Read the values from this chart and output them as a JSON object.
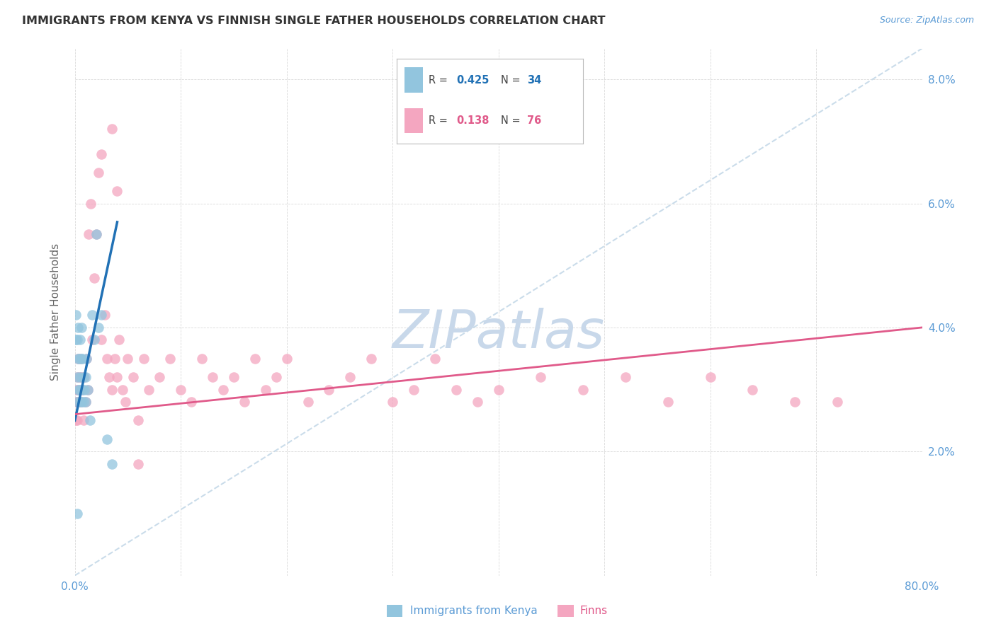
{
  "title": "IMMIGRANTS FROM KENYA VS FINNISH SINGLE FATHER HOUSEHOLDS CORRELATION CHART",
  "source": "Source: ZipAtlas.com",
  "ylabel": "Single Father Households",
  "xlim": [
    0.0,
    0.8
  ],
  "ylim": [
    0.0,
    0.085
  ],
  "xticks": [
    0.0,
    0.1,
    0.2,
    0.3,
    0.4,
    0.5,
    0.6,
    0.7,
    0.8
  ],
  "yticks": [
    0.0,
    0.02,
    0.04,
    0.06,
    0.08
  ],
  "xtick_labels_show": [
    "0.0%",
    "",
    "",
    "",
    "",
    "",
    "",
    "",
    "80.0%"
  ],
  "ytick_labels_right": [
    "",
    "2.0%",
    "4.0%",
    "6.0%",
    "8.0%"
  ],
  "color_blue": "#92C5DE",
  "color_pink": "#F4A6C0",
  "color_blue_line": "#2171B5",
  "color_pink_line": "#E05A8A",
  "color_dashed": "#C5D9E8",
  "watermark_color": "#C8D8EA",
  "axis_color": "#5B9BD5",
  "grid_color": "#D0D0D0",
  "title_color": "#333333",
  "kenya_x": [
    0.001,
    0.001,
    0.002,
    0.002,
    0.002,
    0.003,
    0.003,
    0.003,
    0.004,
    0.004,
    0.005,
    0.005,
    0.005,
    0.006,
    0.006,
    0.006,
    0.007,
    0.007,
    0.008,
    0.008,
    0.009,
    0.01,
    0.01,
    0.011,
    0.012,
    0.014,
    0.016,
    0.018,
    0.02,
    0.022,
    0.025,
    0.03,
    0.035,
    0.002
  ],
  "kenya_y": [
    0.042,
    0.038,
    0.038,
    0.032,
    0.028,
    0.04,
    0.035,
    0.03,
    0.035,
    0.03,
    0.038,
    0.032,
    0.028,
    0.04,
    0.035,
    0.028,
    0.035,
    0.03,
    0.032,
    0.028,
    0.03,
    0.032,
    0.028,
    0.035,
    0.03,
    0.025,
    0.042,
    0.038,
    0.055,
    0.04,
    0.042,
    0.022,
    0.018,
    0.01
  ],
  "finns_x": [
    0.001,
    0.001,
    0.001,
    0.002,
    0.002,
    0.002,
    0.003,
    0.003,
    0.004,
    0.004,
    0.005,
    0.005,
    0.006,
    0.006,
    0.007,
    0.008,
    0.009,
    0.01,
    0.011,
    0.012,
    0.013,
    0.015,
    0.016,
    0.018,
    0.02,
    0.022,
    0.025,
    0.028,
    0.03,
    0.032,
    0.035,
    0.038,
    0.04,
    0.042,
    0.045,
    0.048,
    0.05,
    0.055,
    0.06,
    0.065,
    0.07,
    0.08,
    0.09,
    0.1,
    0.11,
    0.12,
    0.13,
    0.14,
    0.15,
    0.16,
    0.17,
    0.18,
    0.19,
    0.2,
    0.22,
    0.24,
    0.26,
    0.28,
    0.3,
    0.32,
    0.34,
    0.36,
    0.38,
    0.4,
    0.44,
    0.48,
    0.52,
    0.56,
    0.6,
    0.64,
    0.68,
    0.72,
    0.025,
    0.035,
    0.04,
    0.06
  ],
  "finns_y": [
    0.03,
    0.028,
    0.025,
    0.032,
    0.028,
    0.025,
    0.035,
    0.03,
    0.032,
    0.028,
    0.035,
    0.03,
    0.028,
    0.032,
    0.03,
    0.025,
    0.032,
    0.028,
    0.035,
    0.03,
    0.055,
    0.06,
    0.038,
    0.048,
    0.055,
    0.065,
    0.038,
    0.042,
    0.035,
    0.032,
    0.03,
    0.035,
    0.032,
    0.038,
    0.03,
    0.028,
    0.035,
    0.032,
    0.025,
    0.035,
    0.03,
    0.032,
    0.035,
    0.03,
    0.028,
    0.035,
    0.032,
    0.03,
    0.032,
    0.028,
    0.035,
    0.03,
    0.032,
    0.035,
    0.028,
    0.03,
    0.032,
    0.035,
    0.028,
    0.03,
    0.035,
    0.03,
    0.028,
    0.03,
    0.032,
    0.03,
    0.032,
    0.028,
    0.032,
    0.03,
    0.028,
    0.028,
    0.068,
    0.072,
    0.062,
    0.018
  ],
  "blue_line_x": [
    0.0,
    0.04
  ],
  "blue_line_y": [
    0.025,
    0.057
  ],
  "pink_line_x": [
    0.0,
    0.8
  ],
  "pink_line_y": [
    0.026,
    0.04
  ],
  "dashed_line_x": [
    0.0,
    0.8
  ],
  "dashed_line_y": [
    0.0,
    0.085
  ]
}
